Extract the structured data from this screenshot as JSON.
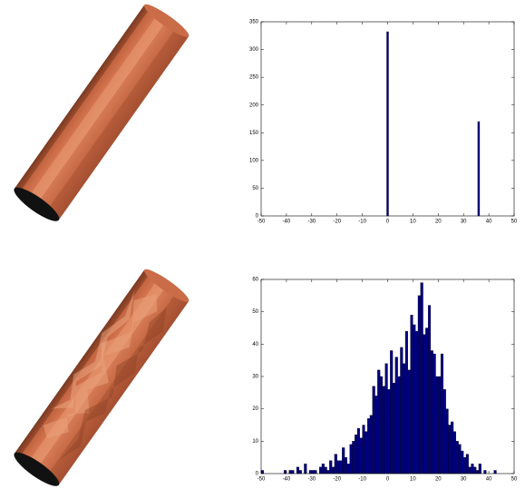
{
  "chart_data": [
    {
      "type": "bar",
      "x": [
        0,
        36
      ],
      "values": [
        332,
        170
      ],
      "color": "#00007f",
      "xlim": [
        -50,
        50
      ],
      "xticks": [
        -50,
        -40,
        -30,
        -20,
        -10,
        0,
        10,
        20,
        30,
        40,
        50
      ],
      "ylim": [
        0,
        350
      ],
      "yticks": [
        0,
        50,
        100,
        150,
        200,
        250,
        300,
        350
      ]
    },
    {
      "type": "histogram",
      "bins": [
        -50,
        -49,
        -48,
        -47,
        -46,
        -45,
        -44,
        -43,
        -42,
        -41,
        -40,
        -39,
        -38,
        -37,
        -36,
        -35,
        -34,
        -33,
        -32,
        -31,
        -30,
        -29,
        -28,
        -27,
        -26,
        -25,
        -24,
        -23,
        -22,
        -21,
        -20,
        -19,
        -18,
        -17,
        -16,
        -15,
        -14,
        -13,
        -12,
        -11,
        -10,
        -9,
        -8,
        -7,
        -6,
        -5,
        -4,
        -3,
        -2,
        -1,
        0,
        1,
        2,
        3,
        4,
        5,
        6,
        7,
        8,
        9,
        10,
        11,
        12,
        13,
        14,
        15,
        16,
        17,
        18,
        19,
        20,
        21,
        22,
        23,
        24,
        25,
        26,
        27,
        28,
        29,
        30,
        31,
        32,
        33,
        34,
        35,
        36,
        37,
        38,
        39,
        40,
        41,
        42,
        43,
        44,
        45,
        46,
        47,
        48,
        49,
        50
      ],
      "values": [
        1,
        0,
        0,
        0,
        0,
        0,
        0,
        0,
        0,
        1,
        0,
        1,
        1,
        0,
        2,
        1,
        0,
        3,
        0,
        1,
        1,
        1,
        0,
        2,
        3,
        2,
        1,
        4,
        2,
        6,
        4,
        4,
        8,
        5,
        3,
        9,
        10,
        12,
        14,
        11,
        15,
        13,
        17,
        18,
        27,
        24,
        32,
        30,
        27,
        34,
        26,
        38,
        28,
        36,
        30,
        39,
        34,
        44,
        32,
        49,
        46,
        44,
        55,
        59,
        43,
        45,
        52,
        38,
        37,
        30,
        30,
        37,
        26,
        20,
        15,
        16,
        13,
        10,
        9,
        7,
        5,
        6,
        2,
        3,
        2,
        1,
        3,
        0,
        1,
        0,
        0,
        0,
        1,
        0,
        0,
        0,
        0,
        0,
        0,
        0
      ],
      "color": "#00007f",
      "xlim": [
        -50,
        50
      ],
      "xticks": [
        -50,
        -40,
        -30,
        -20,
        -10,
        0,
        10,
        20,
        30,
        40,
        50
      ],
      "ylim": [
        0,
        60
      ],
      "yticks": [
        0,
        10,
        20,
        30,
        40,
        50,
        60
      ]
    }
  ]
}
